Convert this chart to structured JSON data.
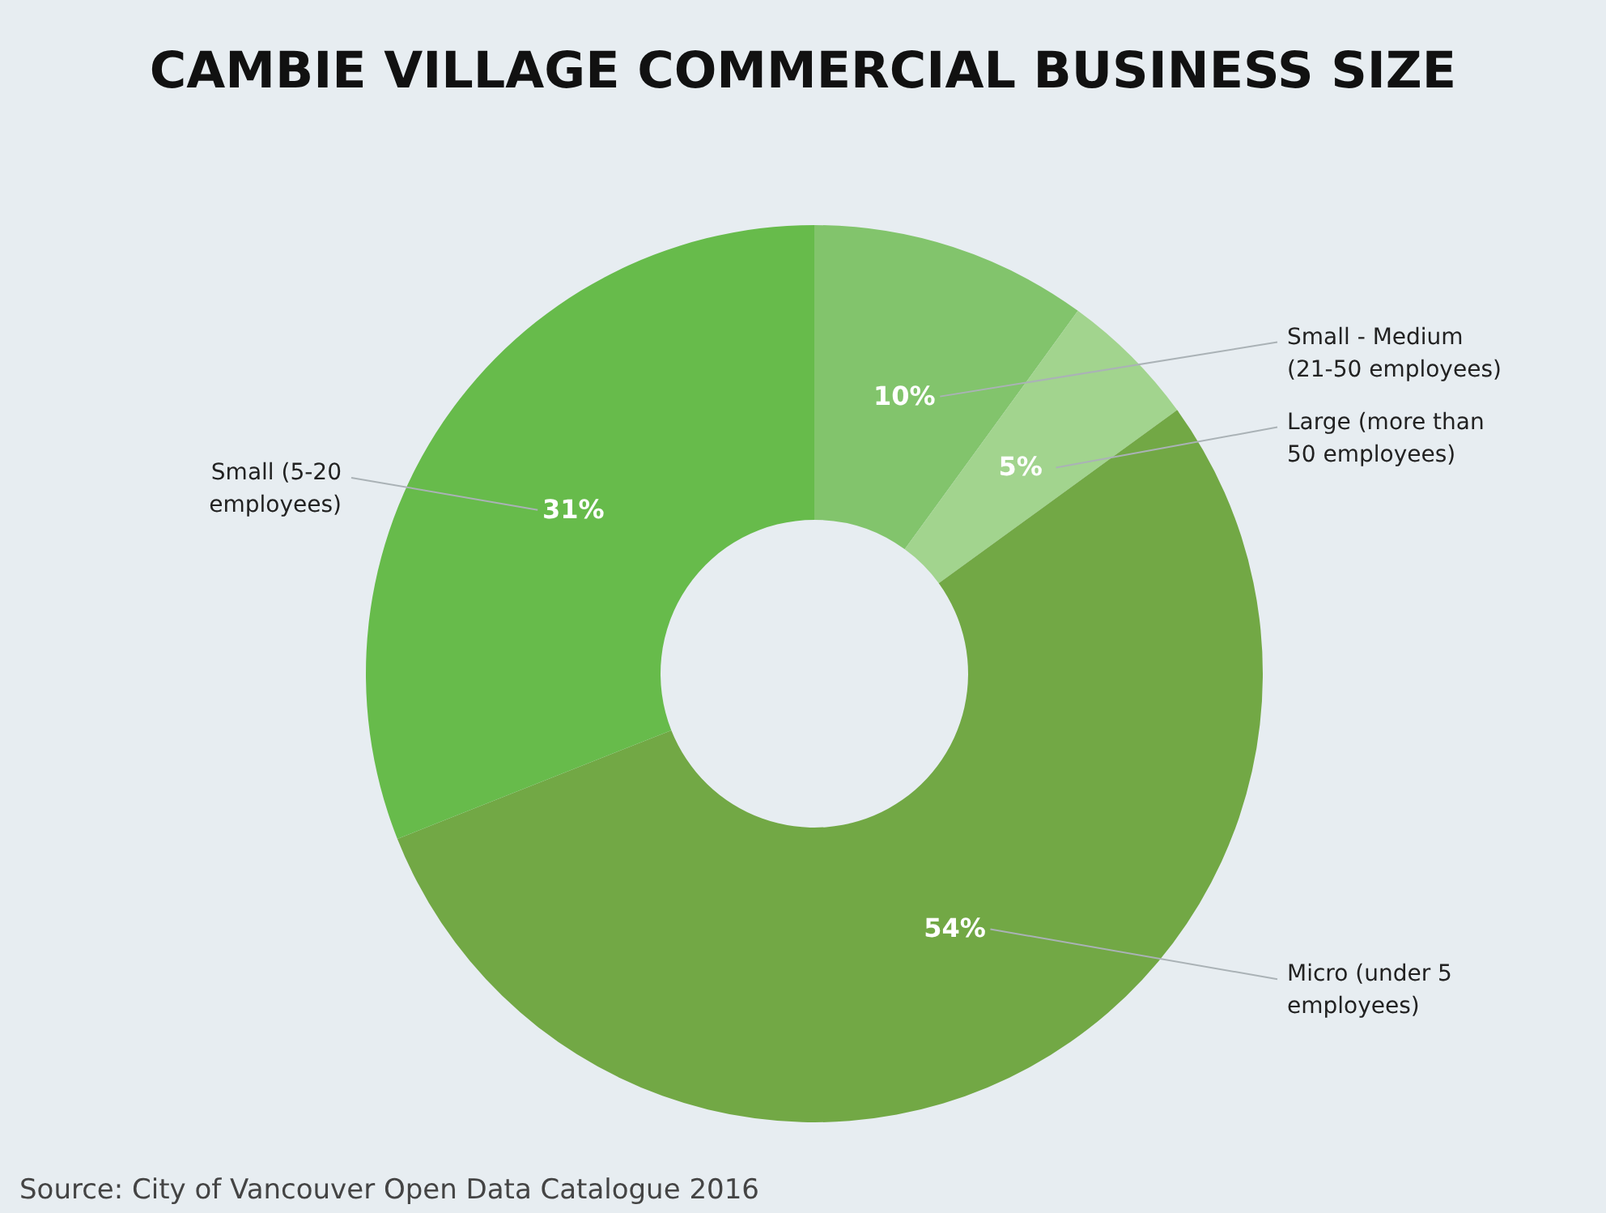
{
  "chart_data": {
    "type": "donut",
    "title": "CAMBIE VILLAGE COMMERCIAL BUSINESS SIZE",
    "categories": [
      "Small - Medium (21-50 employees)",
      "Large (more than 50 employees)",
      "Micro (under 5 employees)",
      "Small (5-20 employees)"
    ],
    "values": [
      10,
      5,
      54,
      31
    ],
    "value_labels": [
      "10%",
      "5%",
      "54%",
      "31%"
    ],
    "colors": [
      "#82c46c",
      "#a2d48e",
      "#72a845",
      "#67bb4b"
    ],
    "annotations": [
      "Source: City of Vancouver Open Data Catalogue 2016"
    ]
  }
}
